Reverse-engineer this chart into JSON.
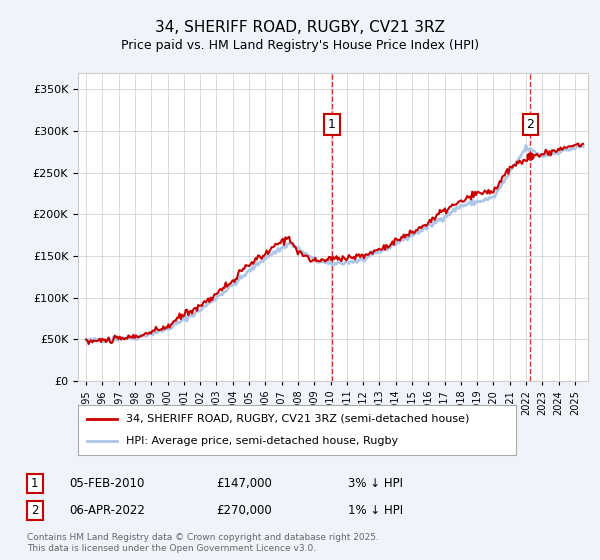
{
  "title": "34, SHERIFF ROAD, RUGBY, CV21 3RZ",
  "subtitle": "Price paid vs. HM Land Registry's House Price Index (HPI)",
  "ylim": [
    0,
    370000
  ],
  "yticks": [
    0,
    50000,
    100000,
    150000,
    200000,
    250000,
    300000,
    350000
  ],
  "xlim_start": 1994.5,
  "xlim_end": 2025.8,
  "hpi_color": "#aec6e8",
  "price_color": "#cc0000",
  "marker1_x": 2010.09,
  "marker1_y": 147000,
  "marker2_x": 2022.27,
  "marker2_y": 270000,
  "legend_line1": "34, SHERIFF ROAD, RUGBY, CV21 3RZ (semi-detached house)",
  "legend_line2": "HPI: Average price, semi-detached house, Rugby",
  "footer": "Contains HM Land Registry data © Crown copyright and database right 2025.\nThis data is licensed under the Open Government Licence v3.0.",
  "background_color": "#f0f4fa",
  "plot_bg_color": "#ffffff",
  "grid_color": "#cccccc",
  "hpi_waypoints_x": [
    1995,
    1998,
    2000,
    2002,
    2004,
    2006,
    2007.5,
    2009,
    2010,
    2012,
    2013,
    2014,
    2016,
    2018,
    2020,
    2021,
    2022,
    2023,
    2024,
    2025.5
  ],
  "hpi_waypoints_y": [
    48000,
    52000,
    62000,
    85000,
    115000,
    148000,
    165000,
    145000,
    140000,
    145000,
    155000,
    165000,
    185000,
    210000,
    220000,
    250000,
    280000,
    270000,
    275000,
    282000
  ],
  "prop_waypoints_x": [
    1995,
    1997,
    1998,
    1999,
    2000,
    2001,
    2002,
    2003,
    2004,
    2005,
    2006,
    2007,
    2007.5,
    2008,
    2009,
    2010.09,
    2011,
    2012,
    2013,
    2014,
    2015,
    2016,
    2017,
    2018,
    2019,
    2020,
    2021,
    2022.27,
    2023,
    2024,
    2025.5
  ],
  "prop_waypoints_y": [
    47000,
    50000,
    53000,
    58000,
    65000,
    80000,
    90000,
    105000,
    120000,
    140000,
    152000,
    168000,
    172000,
    155000,
    143000,
    147000,
    148000,
    150000,
    158000,
    168000,
    178000,
    190000,
    205000,
    215000,
    225000,
    228000,
    255000,
    270000,
    272000,
    278000,
    285000
  ]
}
